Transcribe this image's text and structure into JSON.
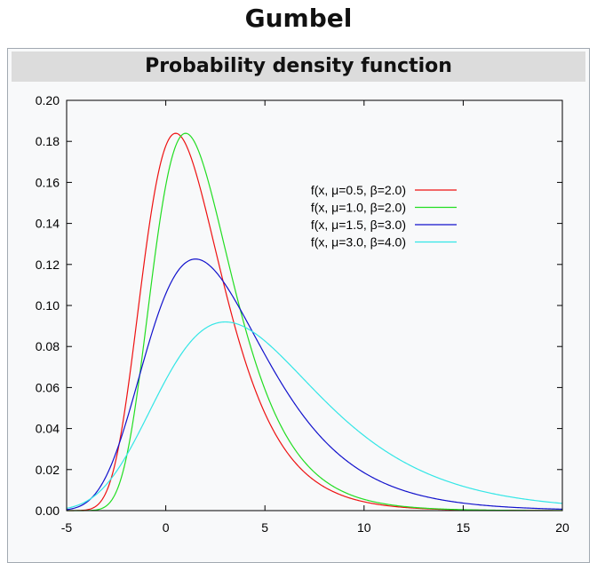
{
  "page_title": "Gumbel",
  "caption": "Probability density function",
  "chart_data": {
    "type": "line",
    "title": "",
    "xlabel": "",
    "ylabel": "",
    "xlim": [
      -5,
      20
    ],
    "ylim": [
      0,
      0.2
    ],
    "xticks": [
      -5,
      0,
      5,
      10,
      15,
      20
    ],
    "xtick_labels": [
      "-5",
      "0",
      "5",
      "10",
      "15",
      "20"
    ],
    "yticks": [
      0,
      0.02,
      0.04,
      0.06,
      0.08,
      0.1,
      0.12,
      0.14,
      0.16,
      0.18,
      0.2
    ],
    "ytick_labels": [
      "0.00",
      "0.02",
      "0.04",
      "0.06",
      "0.08",
      "0.10",
      "0.12",
      "0.14",
      "0.16",
      "0.18",
      "0.20"
    ],
    "grid": false,
    "legend_position": "top-right",
    "series": [
      {
        "name": "f(x, μ=0.5, β=2.0)",
        "mu": 0.5,
        "beta": 2.0,
        "color": "#ee1111"
      },
      {
        "name": "f(x, μ=1.0, β=2.0)",
        "mu": 1.0,
        "beta": 2.0,
        "color": "#22dd22"
      },
      {
        "name": "f(x, μ=1.5, β=3.0)",
        "mu": 1.5,
        "beta": 3.0,
        "color": "#1111cc"
      },
      {
        "name": "f(x, μ=3.0, β=4.0)",
        "mu": 3.0,
        "beta": 4.0,
        "color": "#33e6e6"
      }
    ]
  }
}
